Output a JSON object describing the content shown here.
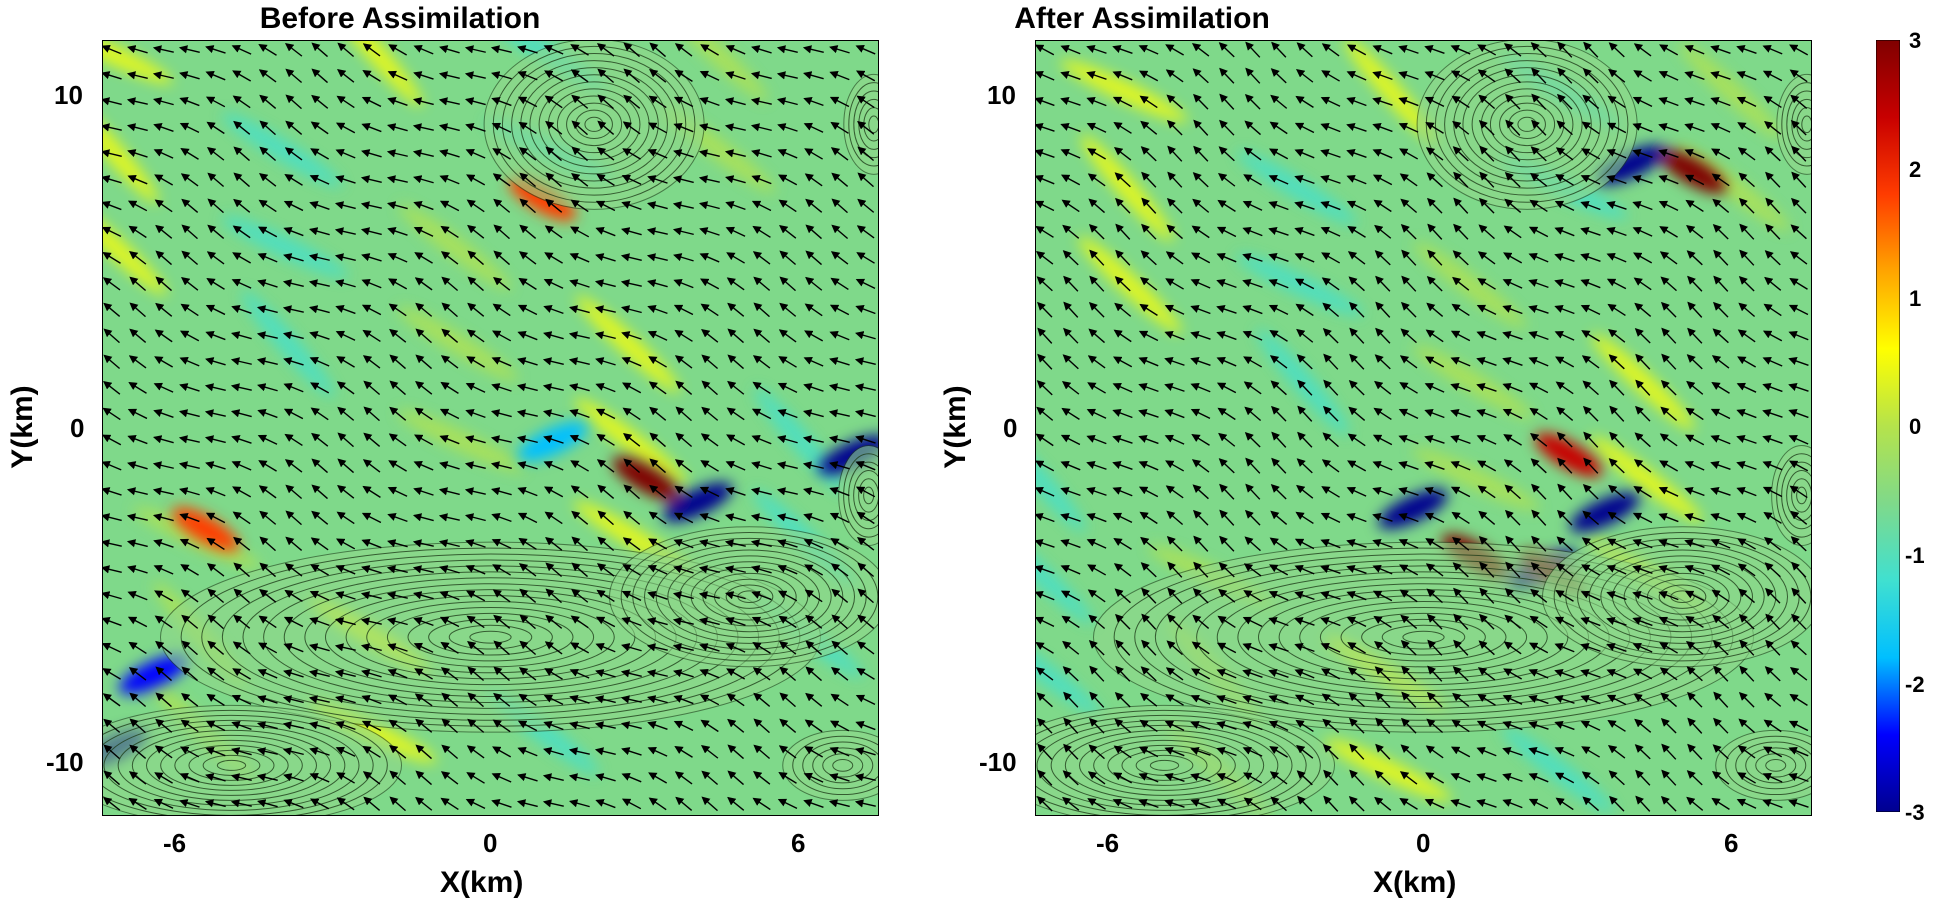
{
  "chart_data": [
    {
      "type": "heatmap",
      "title": "Before Assimilation",
      "xlabel": "X(km)",
      "ylabel": "Y(km)",
      "xlim": [
        -7.5,
        7.5
      ],
      "ylim": [
        -11.5,
        11.5
      ],
      "xticks": [
        "-6",
        "0",
        "6"
      ],
      "yticks": [
        "10",
        "0",
        "-10"
      ],
      "clim": [
        -3,
        3
      ],
      "overlays": [
        "wind-vector-arrows",
        "terrain-contours"
      ],
      "anomalies": [
        {
          "x": 3.0,
          "y": -1.5,
          "value": 3
        },
        {
          "x": 4.0,
          "y": -2.2,
          "value": -3
        },
        {
          "x": 7.0,
          "y": -0.8,
          "value": -3
        },
        {
          "x": -5.5,
          "y": -3.0,
          "value": 2
        },
        {
          "x": -6.5,
          "y": -7.3,
          "value": -2.5
        },
        {
          "x": -7.3,
          "y": -9.5,
          "value": -3
        },
        {
          "x": 1.2,
          "y": -0.4,
          "value": -2
        },
        {
          "x": 1.0,
          "y": 6.8,
          "value": 1.8
        }
      ]
    },
    {
      "type": "heatmap",
      "title": "After Assimilation",
      "xlabel": "X(km)",
      "ylabel": "Y(km)",
      "xlim": [
        -7.5,
        7.5
      ],
      "ylim": [
        -11.5,
        11.5
      ],
      "xticks": [
        "-6",
        "0",
        "6"
      ],
      "yticks": [
        "10",
        "0",
        "-10"
      ],
      "clim": [
        -3,
        3
      ],
      "overlays": [
        "wind-vector-arrows",
        "terrain-contours"
      ],
      "anomalies": [
        {
          "x": 5.2,
          "y": 7.6,
          "value": 3
        },
        {
          "x": 4.0,
          "y": 7.8,
          "value": -3
        },
        {
          "x": 2.8,
          "y": -0.8,
          "value": 2.5
        },
        {
          "x": 3.5,
          "y": -2.5,
          "value": -3
        },
        {
          "x": 1.0,
          "y": -3.8,
          "value": 3
        },
        {
          "x": 2.3,
          "y": -4.2,
          "value": -3
        },
        {
          "x": 2.5,
          "y": -4.3,
          "value": 3
        },
        {
          "x": -0.2,
          "y": -2.4,
          "value": -3
        }
      ]
    }
  ],
  "colorbar": {
    "min": -3,
    "max": 3,
    "ticks": [
      "3",
      "2",
      "1",
      "0",
      "-1",
      "-2",
      "-3"
    ],
    "colors": [
      "#00008f",
      "#0000ff",
      "#00bfff",
      "#40e0d0",
      "#7fd98a",
      "#b5e34b",
      "#ffff00",
      "#ffa500",
      "#ff3c00",
      "#c80000",
      "#800000"
    ]
  }
}
